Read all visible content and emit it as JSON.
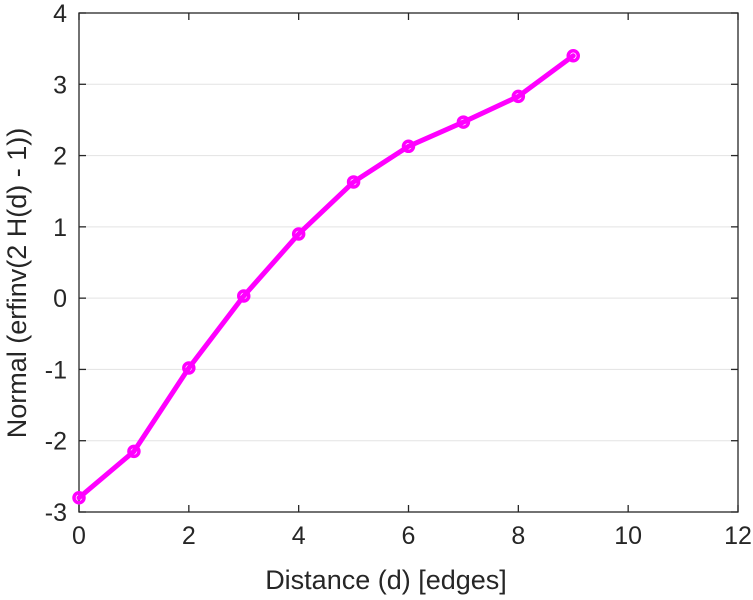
{
  "chart_data": {
    "type": "line",
    "title": "",
    "xlabel": "Distance (d) [edges]",
    "ylabel": "Normal (erfinv(2 H(d) - 1))",
    "xlim": [
      0,
      12
    ],
    "ylim": [
      -3,
      4
    ],
    "xticks": [
      0,
      2,
      4,
      6,
      8,
      10,
      12
    ],
    "yticks": [
      -3,
      -2,
      -1,
      0,
      1,
      2,
      3,
      4
    ],
    "grid": "horizontal",
    "legend": "none",
    "series": [
      {
        "color": "#ff00ff",
        "marker": "circle",
        "x": [
          0,
          1,
          2,
          3,
          4,
          5,
          6,
          7,
          8,
          9
        ],
        "y": [
          -2.8,
          -2.15,
          -0.98,
          0.03,
          0.9,
          1.63,
          2.13,
          2.47,
          2.83,
          3.4
        ]
      }
    ]
  }
}
